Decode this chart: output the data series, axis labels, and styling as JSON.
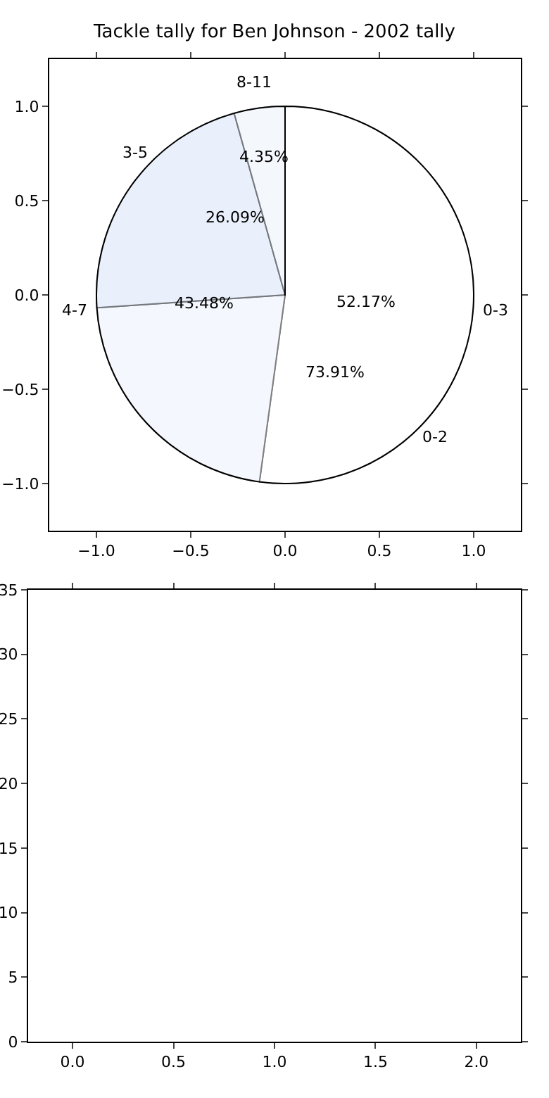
{
  "chart_data": [
    {
      "type": "pie",
      "title": "Tackle tally for Ben Johnson - 2002 tally",
      "categories": [
        "0-3",
        "4-7",
        "8-11"
      ],
      "values": [
        52.17,
        43.48,
        4.35
      ],
      "value_labels": [
        "52.17%",
        "43.48%",
        "4.35%"
      ],
      "colors": [
        "#ffffff",
        "#eaf0fb",
        "#ffffff"
      ]
    },
    {
      "type": "pie",
      "categories": [
        "0-2",
        "3-5"
      ],
      "values": [
        73.91,
        26.09
      ],
      "value_labels": [
        "73.91%",
        "26.09%"
      ],
      "colors": [
        "#ffffff",
        "#eaf0fb"
      ]
    },
    {
      "type": "scatter",
      "xlim": [
        -1.25,
        1.25
      ],
      "ylim": [
        -1.25,
        1.25
      ],
      "xticks": [
        {
          "value": -1,
          "label": "−1.0"
        },
        {
          "value": -0.5,
          "label": "−0.5"
        },
        {
          "value": 0,
          "label": "0.0"
        },
        {
          "value": 0.5,
          "label": "0.5"
        },
        {
          "value": 1,
          "label": "1.0"
        }
      ],
      "yticks": [
        {
          "value": -1,
          "label": "−1.0"
        },
        {
          "value": -0.5,
          "label": "−0.5"
        },
        {
          "value": 0,
          "label": "0.0"
        },
        {
          "value": 0.5,
          "label": "0.5"
        },
        {
          "value": 1,
          "label": "1.0"
        }
      ]
    },
    {
      "type": "bar",
      "xlim": [
        -0.22,
        2.22
      ],
      "ylim": [
        0,
        35
      ],
      "xticks": [
        {
          "value": 0,
          "label": "0.0"
        },
        {
          "value": 0.5,
          "label": "0.5"
        },
        {
          "value": 1,
          "label": "1.0"
        },
        {
          "value": 1.5,
          "label": "1.5"
        },
        {
          "value": 2,
          "label": "2.0"
        }
      ],
      "yticks": [
        0,
        5,
        10,
        15,
        20,
        25,
        30,
        35
      ]
    }
  ]
}
